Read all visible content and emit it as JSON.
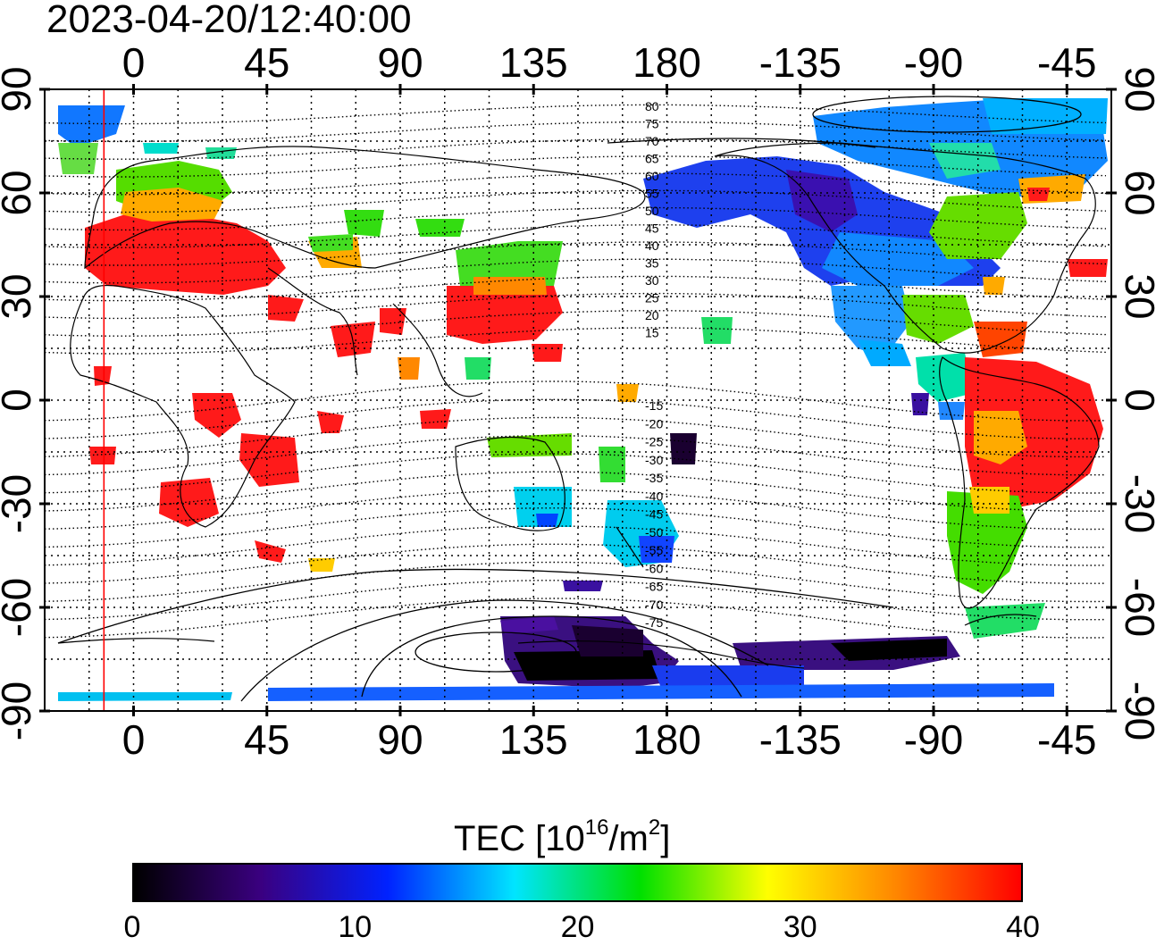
{
  "header": {
    "timestamp": "2023-04-20/12:40:00"
  },
  "map": {
    "lon_ticks": [
      "0",
      "45",
      "90",
      "135",
      "180",
      "-135",
      "-90",
      "-45"
    ],
    "lat_ticks_left": [
      "90",
      "60",
      "30",
      "0",
      "-30",
      "-60",
      "-90"
    ],
    "lat_ticks_right": [
      "90",
      "60",
      "30",
      "0",
      "-30",
      "-60",
      "-90"
    ],
    "magnetic_lat_labels": [
      "80",
      "75",
      "70",
      "65",
      "60",
      "55",
      "50",
      "45",
      "40",
      "35",
      "30",
      "25",
      "20",
      "15",
      "-15",
      "-20",
      "-25",
      "-30",
      "-35",
      "-40",
      "-45",
      "-50",
      "-55",
      "-60",
      "-65",
      "-70",
      "-75"
    ],
    "cursor_longitude": -10
  },
  "colorbar": {
    "title_main": "TEC  [10",
    "title_exp1": "16",
    "title_mid": "/m",
    "title_exp2": "2",
    "title_end": "]",
    "ticks": [
      "0",
      "10",
      "20",
      "30",
      "40"
    ],
    "range": [
      0,
      40
    ],
    "colors": [
      "#000000",
      "#3a0080",
      "#0022ff",
      "#00e5ff",
      "#00e000",
      "#ffff00",
      "#ff8800",
      "#ff0000"
    ]
  }
}
